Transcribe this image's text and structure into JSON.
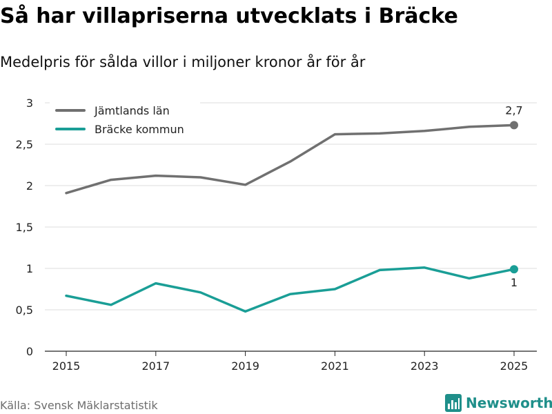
{
  "header": {
    "title": "Så har villapriserna utvecklats i Bräcke",
    "subtitle": "Medelpris för sålda villor i miljoner kronor år för år"
  },
  "footer": {
    "source": "Källa: Svensk Mäklarstatistik",
    "brand": "Newsworthy",
    "brand_icon": "bar-chart-icon",
    "brand_color": "#1f8f8a"
  },
  "chart_data": {
    "type": "line",
    "title": "Så har villapriserna utvecklats i Bräcke",
    "subtitle": "Medelpris för sålda villor i miljoner kronor år för år",
    "xlabel": "",
    "ylabel": "",
    "x": [
      2015,
      2016,
      2017,
      2018,
      2019,
      2020,
      2021,
      2022,
      2023,
      2024,
      2025
    ],
    "x_ticks": [
      "2015",
      "2017",
      "2019",
      "2021",
      "2023",
      "2025"
    ],
    "y_ticks": [
      "0",
      "0,5",
      "1",
      "1,5",
      "2",
      "2,5",
      "3"
    ],
    "ylim": [
      0,
      3
    ],
    "grid": true,
    "legend_position": "top-left",
    "series": [
      {
        "name": "Jämtlands län",
        "color": "#707070",
        "values": [
          1.91,
          2.07,
          2.12,
          2.1,
          2.01,
          2.29,
          2.62,
          2.63,
          2.66,
          2.71,
          2.73
        ],
        "end_label": "2,7"
      },
      {
        "name": "Bräcke kommun",
        "color": "#1a9e96",
        "values": [
          0.67,
          0.56,
          0.82,
          0.71,
          0.48,
          0.69,
          0.75,
          0.98,
          1.01,
          0.88,
          0.99
        ],
        "end_label": "1"
      }
    ]
  }
}
